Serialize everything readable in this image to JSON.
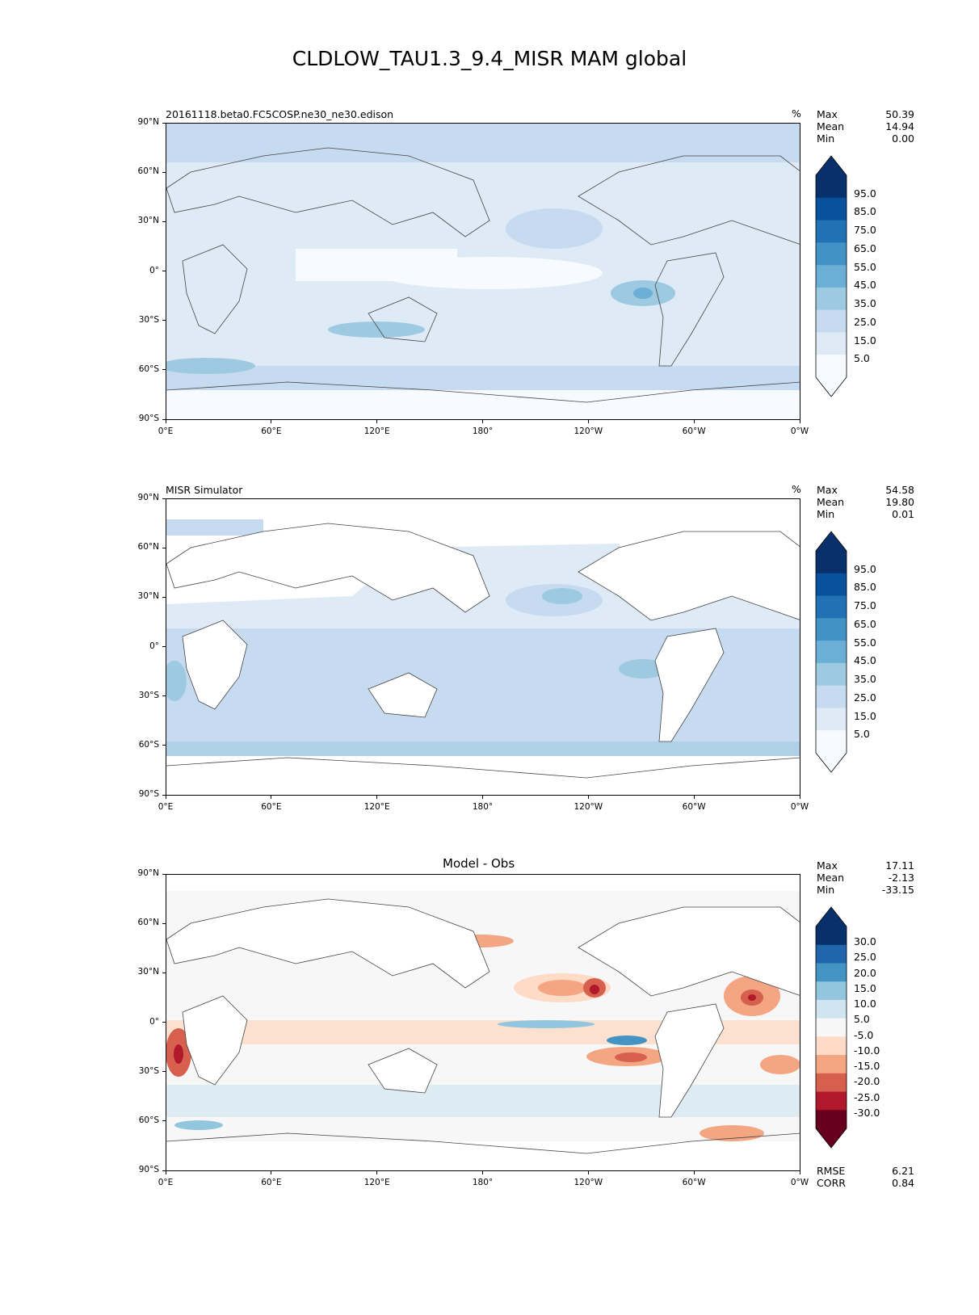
{
  "title": "CLDLOW_TAU1.3_9.4_MISR MAM global",
  "x_ticks": [
    "0°E",
    "60°E",
    "120°E",
    "180°",
    "120°W",
    "60°W",
    "0°W"
  ],
  "y_ticks": [
    "90°N",
    "60°N",
    "30°N",
    "0°",
    "30°S",
    "60°S",
    "90°S"
  ],
  "stat_labels": {
    "max": "Max",
    "mean": "Mean",
    "min": "Min",
    "rmse": "RMSE",
    "corr": "CORR"
  },
  "panels": [
    {
      "left_title": "20161118.beta0.FC5COSP.ne30_ne30.edison",
      "center_title": "",
      "units": "%",
      "stats": {
        "max": "50.39",
        "mean": "14.94",
        "min": "0.00"
      },
      "colorbar_levels": [
        "95.0",
        "85.0",
        "75.0",
        "65.0",
        "55.0",
        "45.0",
        "35.0",
        "25.0",
        "15.0",
        "5.0"
      ],
      "colorbar_colors": [
        "#08306b",
        "#08519c",
        "#2171b5",
        "#4292c6",
        "#6baed6",
        "#9ecae1",
        "#c6dbef",
        "#deebf7",
        "#f7fbff"
      ]
    },
    {
      "left_title": "MISR Simulator",
      "center_title": "",
      "units": "%",
      "stats": {
        "max": "54.58",
        "mean": "19.80",
        "min": "0.01"
      },
      "colorbar_levels": [
        "95.0",
        "85.0",
        "75.0",
        "65.0",
        "55.0",
        "45.0",
        "35.0",
        "25.0",
        "15.0",
        "5.0"
      ],
      "colorbar_colors": [
        "#08306b",
        "#08519c",
        "#2171b5",
        "#4292c6",
        "#6baed6",
        "#9ecae1",
        "#c6dbef",
        "#deebf7",
        "#f7fbff"
      ]
    },
    {
      "left_title": "",
      "center_title": "Model - Obs",
      "units": "",
      "stats": {
        "max": "17.11",
        "mean": "-2.13",
        "min": "-33.15",
        "rmse": "6.21",
        "corr": "0.84"
      },
      "colorbar_levels": [
        "30.0",
        "25.0",
        "20.0",
        "15.0",
        "10.0",
        "5.0",
        "-5.0",
        "-10.0",
        "-15.0",
        "-20.0",
        "-25.0",
        "-30.0"
      ],
      "colorbar_colors": [
        "#08306b",
        "#2166ac",
        "#4393c3",
        "#92c5de",
        "#d1e5f0",
        "#f7f7f7",
        "#fddbc7",
        "#f4a582",
        "#d6604d",
        "#b2182b",
        "#67001f"
      ]
    }
  ]
}
